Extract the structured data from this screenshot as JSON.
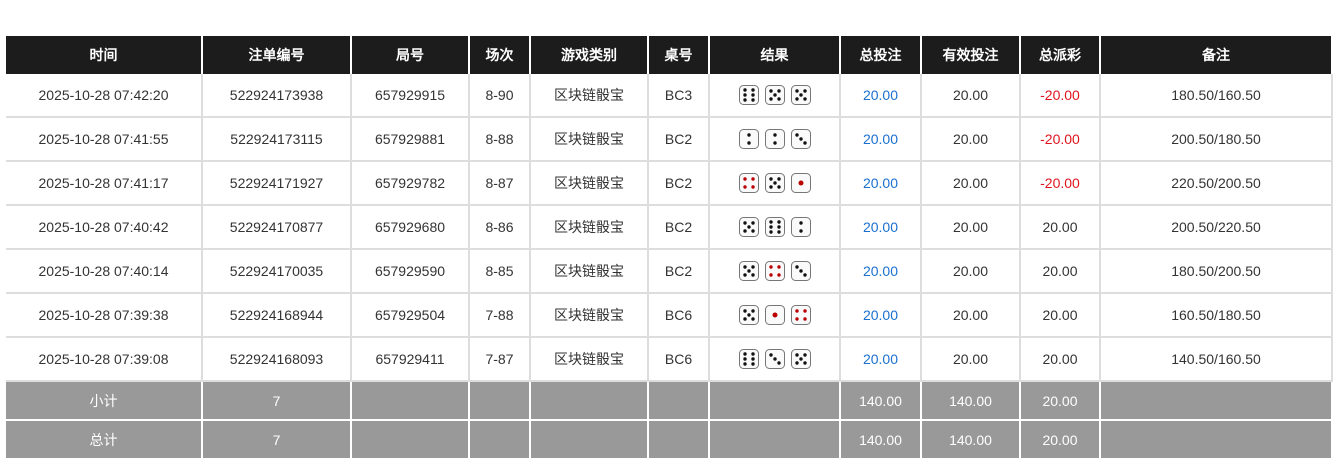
{
  "headers": [
    "时间",
    "注单编号",
    "局号",
    "场次",
    "游戏类别",
    "桌号",
    "结果",
    "总投注",
    "有效投注",
    "总派彩",
    "备注"
  ],
  "rows": [
    {
      "time": "2025-10-28 07:42:20",
      "bet_id": "522924173938",
      "round": "657929915",
      "session": "8-90",
      "game": "区块链骰宝",
      "table": "BC3",
      "dice": [
        6,
        5,
        5
      ],
      "total_bet": "20.00",
      "valid_bet": "20.00",
      "payout": "-20.00",
      "note": "180.50/160.50"
    },
    {
      "time": "2025-10-28 07:41:55",
      "bet_id": "522924173115",
      "round": "657929881",
      "session": "8-88",
      "game": "区块链骰宝",
      "table": "BC2",
      "dice": [
        2,
        2,
        3
      ],
      "total_bet": "20.00",
      "valid_bet": "20.00",
      "payout": "-20.00",
      "note": "200.50/180.50"
    },
    {
      "time": "2025-10-28 07:41:17",
      "bet_id": "522924171927",
      "round": "657929782",
      "session": "8-87",
      "game": "区块链骰宝",
      "table": "BC2",
      "dice": [
        4,
        5,
        1
      ],
      "total_bet": "20.00",
      "valid_bet": "20.00",
      "payout": "-20.00",
      "note": "220.50/200.50"
    },
    {
      "time": "2025-10-28 07:40:42",
      "bet_id": "522924170877",
      "round": "657929680",
      "session": "8-86",
      "game": "区块链骰宝",
      "table": "BC2",
      "dice": [
        5,
        6,
        2
      ],
      "total_bet": "20.00",
      "valid_bet": "20.00",
      "payout": "20.00",
      "note": "200.50/220.50"
    },
    {
      "time": "2025-10-28 07:40:14",
      "bet_id": "522924170035",
      "round": "657929590",
      "session": "8-85",
      "game": "区块链骰宝",
      "table": "BC2",
      "dice": [
        5,
        4,
        3
      ],
      "total_bet": "20.00",
      "valid_bet": "20.00",
      "payout": "20.00",
      "note": "180.50/200.50"
    },
    {
      "time": "2025-10-28 07:39:38",
      "bet_id": "522924168944",
      "round": "657929504",
      "session": "7-88",
      "game": "区块链骰宝",
      "table": "BC6",
      "dice": [
        5,
        1,
        4
      ],
      "total_bet": "20.00",
      "valid_bet": "20.00",
      "payout": "20.00",
      "note": "160.50/180.50"
    },
    {
      "time": "2025-10-28 07:39:08",
      "bet_id": "522924168093",
      "round": "657929411",
      "session": "7-87",
      "game": "区块链骰宝",
      "table": "BC6",
      "dice": [
        6,
        3,
        5
      ],
      "total_bet": "20.00",
      "valid_bet": "20.00",
      "payout": "20.00",
      "note": "140.50/160.50"
    }
  ],
  "summary": [
    {
      "label": "小计",
      "count": "7",
      "total_bet": "140.00",
      "valid_bet": "140.00",
      "payout": "20.00"
    },
    {
      "label": "总计",
      "count": "7",
      "total_bet": "140.00",
      "valid_bet": "140.00",
      "payout": "20.00"
    }
  ],
  "colors": {
    "header": "#1c1c1c",
    "total_bet": "#1a6fd0",
    "negative": "#e0141e",
    "summary": "#999999"
  }
}
